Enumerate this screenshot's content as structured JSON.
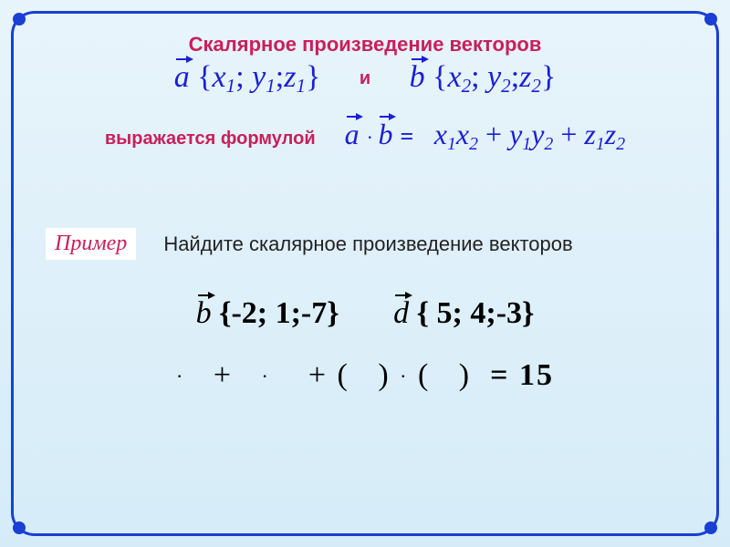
{
  "colors": {
    "frame": "#1a3fd4",
    "accent": "#c8205a",
    "math": "#1a1fd4",
    "bg_top": "#e8f4fb",
    "bg_bottom": "#d5ecf8"
  },
  "title": "Скалярное произведение векторов",
  "vector_a": {
    "name": "a",
    "coords_label": "{x₁; y₁;z₁}"
  },
  "conj_and": "и",
  "vector_b": {
    "name": "b",
    "coords_label": "{x₂; y₂;z₂}"
  },
  "lead_text": "выражается формулой",
  "formula": {
    "lhs_a": "a",
    "lhs_b": "b",
    "rhs": "x₁x₂ + y₁y₂+z₁z₂"
  },
  "example": {
    "label": "Пример",
    "task": "Найдите скалярное произведение векторов",
    "v1": {
      "name": "b",
      "coords": "{-2; 1;-7}"
    },
    "v2": {
      "name": "d",
      "coords": "{ 5; 4;-3}"
    },
    "work": "·   +   ·    + (   ) · (   )",
    "result": "= 15"
  }
}
